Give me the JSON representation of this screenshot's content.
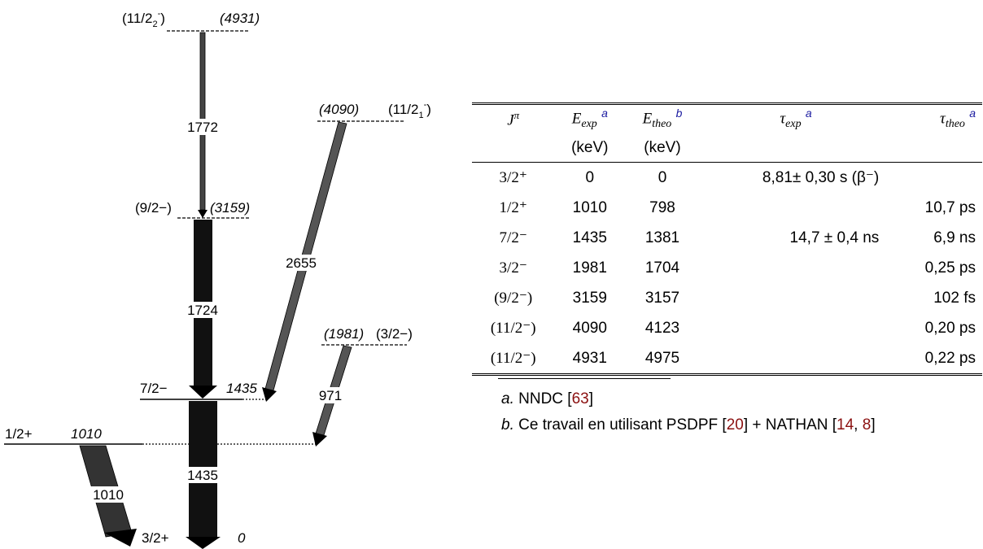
{
  "scheme": {
    "levels": [
      {
        "energy": "(4931)",
        "spin": "(11/2"
      },
      {
        "energy": "(4090)",
        "spin": "(11/2"
      },
      {
        "energy": "(3159)",
        "spin": "(9/2−)"
      },
      {
        "energy": "(1981)",
        "spin": "(3/2−)"
      },
      {
        "energy": "1435",
        "spin": "7/2−"
      },
      {
        "energy": "1010",
        "spin": "1/2+"
      },
      {
        "energy": "0",
        "spin": "3/2+"
      }
    ],
    "gammas": [
      "1772",
      "1724",
      "2655",
      "971",
      "1435",
      "1010"
    ]
  },
  "table": {
    "headers": [
      "J",
      "E",
      "E",
      "τ",
      "τ"
    ],
    "header_subs": [
      "π",
      "exp",
      "theo",
      "exp",
      "theo"
    ],
    "header_refs": [
      "",
      "a",
      "b",
      "a",
      "a"
    ],
    "units": [
      "",
      "(keV)",
      "(keV)",
      "",
      ""
    ],
    "rows": [
      {
        "jpi": "3/2⁺",
        "e_exp": "0",
        "e_theo": "0",
        "tau_exp": "8,81± 0,30 s (β⁻)",
        "tau_theo": ""
      },
      {
        "jpi": "1/2⁺",
        "e_exp": "1010",
        "e_theo": "798",
        "tau_exp": "",
        "tau_theo": "10,7 ps"
      },
      {
        "jpi": "7/2⁻",
        "e_exp": "1435",
        "e_theo": "1381",
        "tau_exp": "14,7 ± 0,4 ns",
        "tau_theo": "6,9 ns"
      },
      {
        "jpi": "3/2⁻",
        "e_exp": "1981",
        "e_theo": "1704",
        "tau_exp": "",
        "tau_theo": "0,25 ps"
      },
      {
        "jpi": "(9/2⁻)",
        "e_exp": "3159",
        "e_theo": "3157",
        "tau_exp": "",
        "tau_theo": "102 fs"
      },
      {
        "jpi": "(11/2⁻)",
        "e_exp": "4090",
        "e_theo": "4123",
        "tau_exp": "",
        "tau_theo": "0,20 ps"
      },
      {
        "jpi": "(11/2⁻)",
        "e_exp": "4931",
        "e_theo": "4975",
        "tau_exp": "",
        "tau_theo": "0,22 ps"
      }
    ]
  },
  "footnotes": {
    "a_label": "a.",
    "a_text": "NNDC [",
    "a_ref": "63",
    "a_close": "]",
    "b_label": "b.",
    "b_text": "Ce travail en utilisant PSDPF [",
    "b_ref1": "20",
    "b_mid": "] + NATHAN [",
    "b_ref2": "14",
    "b_comma": ", ",
    "b_ref3": "8",
    "b_close": "]"
  },
  "colors": {
    "ref": "#8b1010",
    "note": "#1a1aa0"
  }
}
